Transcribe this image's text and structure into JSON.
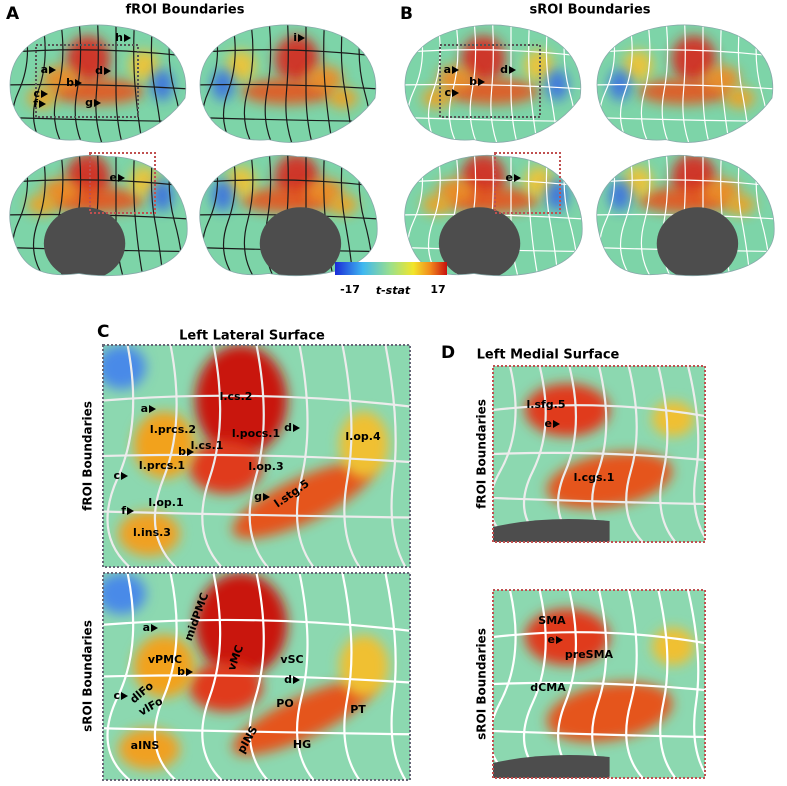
{
  "panel_a": {
    "letter": "A",
    "title": "fROI Boundaries",
    "markers": [
      "a",
      "b",
      "d",
      "c",
      "f",
      "g",
      "h",
      "i",
      "e"
    ]
  },
  "panel_b": {
    "letter": "B",
    "title": "sROI Boundaries",
    "markers": [
      "a",
      "b",
      "d",
      "c",
      "e"
    ]
  },
  "colorbar": {
    "min": -17,
    "label": "t-stat",
    "max": 17
  },
  "panel_c": {
    "letter": "C",
    "title": "Left Lateral Surface",
    "rows": [
      {
        "label": "fROI Boundaries",
        "regions": [
          "l.cs.2",
          "l.prcs.2",
          "l.pocs.1",
          "l.cs.1",
          "l.prcs.1",
          "l.op.3",
          "l.op.4",
          "l.stg.5",
          "l.op.1",
          "l.ins.3"
        ],
        "markers": [
          "a",
          "b",
          "d",
          "c",
          "g",
          "f"
        ]
      },
      {
        "label": "sROI Boundaries",
        "regions": [
          "midPMC",
          "vMC",
          "vPMC",
          "vSC",
          "dlFo",
          "vlFo",
          "PO",
          "PT",
          "HG",
          "pINS",
          "aINS"
        ],
        "markers": [
          "a",
          "b",
          "d",
          "c"
        ]
      }
    ]
  },
  "panel_d": {
    "letter": "D",
    "title": "Left Medial Surface",
    "rows": [
      {
        "label": "fROI Boundaries",
        "regions": [
          "l.sfg.5",
          "l.cgs.1"
        ],
        "markers": [
          "e"
        ]
      },
      {
        "label": "sROI Boundaries",
        "regions": [
          "SMA",
          "preSMA",
          "dCMA"
        ],
        "markers": [
          "e"
        ]
      }
    ]
  }
}
